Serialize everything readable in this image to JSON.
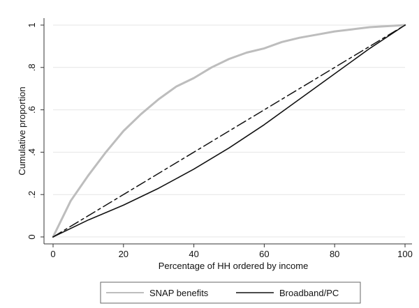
{
  "chart_data": {
    "type": "line",
    "title": "",
    "xlabel": "Percentage of HH ordered by income",
    "ylabel": "Cumulative proportion",
    "xlim": [
      0,
      100
    ],
    "ylim": [
      0,
      1
    ],
    "x_ticks": [
      {
        "value": 0,
        "label": "0"
      },
      {
        "value": 20,
        "label": "20"
      },
      {
        "value": 40,
        "label": "40"
      },
      {
        "value": 60,
        "label": "60"
      },
      {
        "value": 80,
        "label": "80"
      },
      {
        "value": 100,
        "label": "100"
      }
    ],
    "y_ticks": [
      {
        "value": 0,
        "label": "0"
      },
      {
        "value": 0.2,
        "label": ".2"
      },
      {
        "value": 0.4,
        "label": ".4"
      },
      {
        "value": 0.6,
        "label": ".6"
      },
      {
        "value": 0.8,
        "label": ".8"
      },
      {
        "value": 1,
        "label": "1"
      }
    ],
    "grid": true,
    "legend": {
      "placement": "bottom"
    },
    "series": [
      {
        "name": "SNAP benefits",
        "color": "#bdbdbd",
        "style": "solid-thick",
        "in_legend": true,
        "x": [
          0,
          5,
          10,
          15,
          20,
          25,
          30,
          35,
          40,
          45,
          50,
          55,
          60,
          65,
          70,
          75,
          80,
          85,
          90,
          95,
          100
        ],
        "y": [
          0,
          0.17,
          0.29,
          0.4,
          0.5,
          0.58,
          0.65,
          0.71,
          0.75,
          0.8,
          0.84,
          0.87,
          0.89,
          0.92,
          0.94,
          0.955,
          0.97,
          0.98,
          0.99,
          0.995,
          1.0
        ]
      },
      {
        "name": "Broadband/PC",
        "color": "#111111",
        "style": "solid",
        "in_legend": true,
        "x": [
          0,
          10,
          20,
          30,
          40,
          50,
          60,
          70,
          80,
          90,
          100
        ],
        "y": [
          0,
          0.08,
          0.15,
          0.23,
          0.32,
          0.42,
          0.53,
          0.65,
          0.77,
          0.89,
          1.0
        ]
      },
      {
        "name": "",
        "color": "#111111",
        "style": "dashed",
        "in_legend": false,
        "x": [
          0,
          100
        ],
        "y": [
          0,
          1
        ]
      }
    ]
  }
}
